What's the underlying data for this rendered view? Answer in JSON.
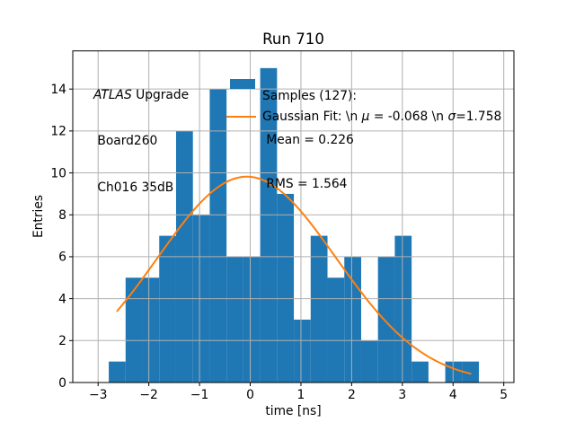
{
  "title": "Run 710",
  "annotation": {
    "lines": [
      [
        {
          "t": "ATLAS",
          "i": true
        },
        {
          "t": " Upgrade",
          "i": false
        }
      ],
      [
        {
          "t": " Board260",
          "i": false
        }
      ],
      [
        {
          "t": " Ch016 35dB",
          "i": false
        }
      ]
    ]
  },
  "legend": {
    "samples_lines": [
      "Samples (127):",
      " Mean = 0.226",
      " RMS = 1.564"
    ],
    "gaussian_segments": [
      {
        "t": "Gaussian Fit: \\n ",
        "i": false
      },
      {
        "t": "μ",
        "i": true
      },
      {
        "t": " = -0.068 \\n ",
        "i": false
      },
      {
        "t": "σ",
        "i": true
      },
      {
        "t": "=1.758",
        "i": false
      }
    ]
  },
  "chart_data": {
    "type": "bar",
    "subtype": "histogram-with-gaussian-fit",
    "title": "Run 710",
    "xlabel": "time [ns]",
    "ylabel": "Entries",
    "xlim": [
      -3.5,
      5.2
    ],
    "ylim": [
      0,
      15.82
    ],
    "grid": true,
    "legend_position": "upper center, frameless",
    "x_ticks": [
      -3,
      -2,
      -1,
      0,
      1,
      2,
      3,
      4,
      5
    ],
    "x_tick_labels": [
      "−3",
      "−2",
      "−1",
      "0",
      "1",
      "2",
      "3",
      "4",
      "5"
    ],
    "y_ticks": [
      0,
      2,
      4,
      6,
      8,
      10,
      12,
      14
    ],
    "y_tick_labels": [
      "0",
      "2",
      "4",
      "6",
      "8",
      "10",
      "12",
      "14"
    ],
    "bar_color": "#1f77b4",
    "line_color": "#ff7f0e",
    "grid_color": "#b0b0b0",
    "histogram": {
      "bin_start": -2.79,
      "bin_width": 0.33182,
      "counts": [
        1,
        5,
        5,
        7,
        12,
        8,
        14,
        6,
        6,
        15,
        9,
        3,
        7,
        5,
        6,
        2,
        6,
        7,
        1,
        0,
        1,
        1
      ],
      "total_entries": 127
    },
    "gaussian_fit": {
      "amplitude": 9.82,
      "mu": -0.068,
      "sigma": 1.758,
      "x_min": -2.624,
      "x_max": 4.344
    },
    "stats": {
      "samples": 127,
      "mean": 0.226,
      "rms": 1.564
    }
  }
}
